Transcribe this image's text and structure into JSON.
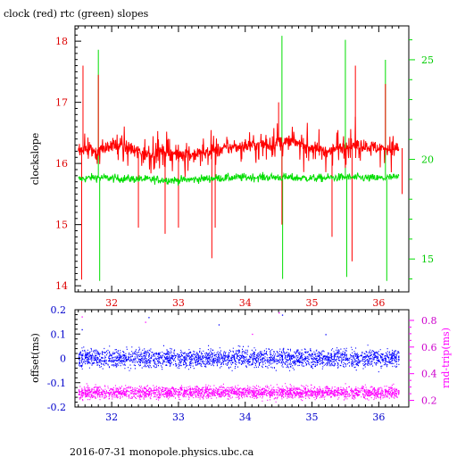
{
  "header": {
    "title": "clock (red) rtc (green) slopes"
  },
  "footer": {
    "caption": "2016-07-31 monopole.physics.ubc.ca"
  },
  "colors": {
    "clock": "#ff0000",
    "rtc": "#00dd00",
    "offset": "#0000ff",
    "rtt": "#ff00ff",
    "axis": "#000000"
  },
  "chart_data": [
    {
      "type": "line",
      "title": "clock (red) rtc (green) slopes",
      "xlabel": "",
      "ylabel": "clockslope",
      "y2label": "",
      "xlim": [
        31.45,
        36.45
      ],
      "ylim": [
        13.9,
        18.25
      ],
      "y2lim": [
        13.35,
        26.7
      ],
      "x_ticks": [
        "32",
        "33",
        "34",
        "35",
        "36"
      ],
      "y_ticks": [
        "14",
        "15",
        "16",
        "17",
        "18"
      ],
      "y2_ticks": [
        "15",
        "20",
        "25"
      ],
      "grid": false,
      "series": [
        {
          "name": "clock",
          "axis": "left",
          "band": [
            [
              31.5,
              16.25
            ],
            [
              31.75,
              16.2
            ],
            [
              32.0,
              16.3
            ],
            [
              32.25,
              16.25
            ],
            [
              32.5,
              16.15
            ],
            [
              32.75,
              16.2
            ],
            [
              33.0,
              16.15
            ],
            [
              33.25,
              16.15
            ],
            [
              33.5,
              16.2
            ],
            [
              33.75,
              16.25
            ],
            [
              34.0,
              16.3
            ],
            [
              34.25,
              16.3
            ],
            [
              34.5,
              16.35
            ],
            [
              34.75,
              16.35
            ],
            [
              35.0,
              16.25
            ],
            [
              35.25,
              16.2
            ],
            [
              35.5,
              16.3
            ],
            [
              35.75,
              16.3
            ],
            [
              36.0,
              16.25
            ],
            [
              36.3,
              16.25
            ]
          ],
          "spikes": [
            [
              31.55,
              14.1
            ],
            [
              31.57,
              17.6
            ],
            [
              31.8,
              17.45
            ],
            [
              32.4,
              14.95
            ],
            [
              32.8,
              14.85
            ],
            [
              33.0,
              14.95
            ],
            [
              33.5,
              14.45
            ],
            [
              33.55,
              14.95
            ],
            [
              34.5,
              17.0
            ],
            [
              34.55,
              15.0
            ],
            [
              35.3,
              14.8
            ],
            [
              35.6,
              14.4
            ],
            [
              35.65,
              17.6
            ],
            [
              36.1,
              17.3
            ],
            [
              36.35,
              15.5
            ]
          ]
        },
        {
          "name": "rtc",
          "axis": "right",
          "band": [
            [
              31.5,
              19.0
            ],
            [
              31.75,
              19.1
            ],
            [
              32.0,
              19.05
            ],
            [
              32.5,
              19.0
            ],
            [
              33.0,
              18.95
            ],
            [
              33.5,
              19.05
            ],
            [
              34.0,
              19.1
            ],
            [
              34.5,
              19.1
            ],
            [
              35.0,
              19.05
            ],
            [
              35.5,
              19.1
            ],
            [
              36.0,
              19.05
            ],
            [
              36.3,
              19.1
            ]
          ],
          "spikes": [
            [
              31.8,
              25.5
            ],
            [
              31.82,
              13.9
            ],
            [
              34.55,
              26.2
            ],
            [
              34.56,
              14.0
            ],
            [
              35.5,
              26.0
            ],
            [
              35.52,
              14.1
            ],
            [
              36.1,
              25.0
            ],
            [
              36.12,
              13.9
            ]
          ]
        }
      ]
    },
    {
      "type": "scatter",
      "xlabel": "",
      "ylabel": "offset(ms)",
      "y2label": "rnd-trip(ms)",
      "xlim": [
        31.45,
        36.45
      ],
      "ylim": [
        -0.2,
        0.2
      ],
      "y2lim": [
        0.15,
        0.88
      ],
      "x_ticks": [
        "32",
        "33",
        "34",
        "35",
        "36"
      ],
      "y_ticks": [
        "-0.2",
        "-0.1",
        "0",
        "0.1",
        "0.2"
      ],
      "y2_ticks": [
        "0.2",
        "0.4",
        "0.6",
        "0.8"
      ],
      "grid": false,
      "series": [
        {
          "name": "offset",
          "axis": "left",
          "center": 0.0,
          "spread": 0.045,
          "outliers": [
            [
              31.55,
              0.12
            ],
            [
              32.55,
              0.17
            ],
            [
              33.6,
              0.14
            ],
            [
              34.55,
              0.18
            ],
            [
              35.2,
              0.1
            ]
          ]
        },
        {
          "name": "rnd-trip",
          "axis": "right",
          "center": 0.26,
          "spread": 0.06,
          "outliers": [
            [
              31.55,
              0.83
            ],
            [
              32.5,
              0.79
            ],
            [
              34.5,
              0.86
            ],
            [
              34.1,
              0.7
            ]
          ]
        }
      ]
    }
  ]
}
